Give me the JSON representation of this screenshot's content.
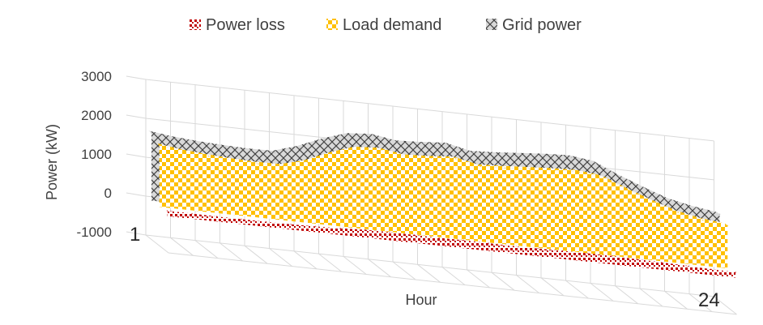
{
  "chart_data": {
    "type": "area",
    "view": "3d",
    "xlabel": "Hour",
    "ylabel": "Power (kW)",
    "ylim": [
      -1000,
      3000
    ],
    "yticks": [
      "3000",
      "2000",
      "1000",
      "0",
      "-1000"
    ],
    "x_first_label": "1",
    "x_last_label": "24",
    "x": [
      1,
      2,
      3,
      4,
      5,
      6,
      7,
      8,
      9,
      10,
      11,
      12,
      13,
      14,
      15,
      16,
      17,
      18,
      19,
      20,
      21,
      22,
      23,
      24
    ],
    "legend_position": "top",
    "grid": true,
    "series": [
      {
        "name": "Power loss",
        "color": "#c00000",
        "values": [
          60,
          55,
          50,
          50,
          50,
          55,
          70,
          90,
          120,
          130,
          125,
          120,
          125,
          120,
          110,
          120,
          130,
          135,
          135,
          120,
          110,
          90,
          70,
          60
        ]
      },
      {
        "name": "Load demand",
        "color": "#ffc000",
        "values": [
          1580,
          1490,
          1440,
          1400,
          1380,
          1390,
          1560,
          1830,
          2040,
          2080,
          1980,
          2010,
          2060,
          1930,
          1960,
          2000,
          2040,
          2060,
          1990,
          1740,
          1510,
          1300,
          1170,
          1100
        ]
      },
      {
        "name": "Grid power",
        "color": "#a6a6a6",
        "values": [
          1740,
          1660,
          1610,
          1580,
          1560,
          1570,
          1760,
          2020,
          2230,
          2280,
          2180,
          2210,
          2260,
          2120,
          2150,
          2200,
          2250,
          2280,
          2200,
          1920,
          1680,
          1450,
          1320,
          1230
        ]
      }
    ]
  }
}
